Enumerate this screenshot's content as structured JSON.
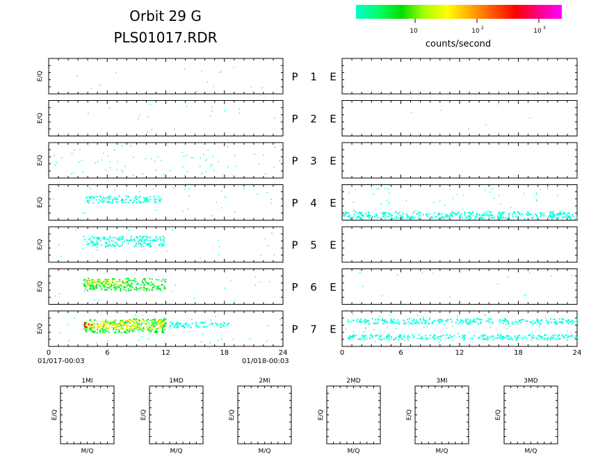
{
  "header": {
    "title_line1": "Orbit  29  G",
    "title_line2": "PLS01017.RDR"
  },
  "colorbar": {
    "label": "counts/second",
    "ticks": [
      {
        "base": "10",
        "exp": ""
      },
      {
        "base": "10",
        "exp": "2"
      },
      {
        "base": "10",
        "exp": "3"
      }
    ],
    "gradient": [
      "#00ffcc",
      "#00ff66",
      "#00dd00",
      "#aaff00",
      "#ffff00",
      "#ffaa00",
      "#ff5500",
      "#ff0000",
      "#ff0088",
      "#ff00ff"
    ]
  },
  "left_axis": {
    "ticks": [
      "0",
      "6",
      "12",
      "18",
      "24"
    ],
    "start_label": "01/017-00:03",
    "end_label": "01/018-00:03",
    "ylabel": "E/Q"
  },
  "right_axis": {
    "ticks": [
      "0",
      "6",
      "12",
      "18",
      "24"
    ]
  },
  "chart_data": {
    "type": "heatmap",
    "x_range_hours": [
      0,
      24
    ],
    "colors": {
      "low": "#00ffdd",
      "mid": "#00ee22",
      "high": "#ffee00",
      "peak": "#ff0000"
    },
    "rows": [
      {
        "p": "P",
        "num": "1",
        "e": "E",
        "left": {
          "density": 0.12,
          "bands": []
        },
        "right": {
          "density": 0,
          "bands": []
        }
      },
      {
        "p": "P",
        "num": "2",
        "e": "E",
        "left": {
          "density": 0.14,
          "bands": []
        },
        "right": {
          "density": 0.05,
          "bands": []
        }
      },
      {
        "p": "P",
        "num": "3",
        "e": "E",
        "left": {
          "density": 0.6,
          "bands": []
        },
        "right": {
          "density": 0,
          "bands": []
        }
      },
      {
        "p": "P",
        "num": "4",
        "e": "E",
        "left": {
          "density": 0.25,
          "bands": [
            {
              "x0": 3.7,
              "x1": 11.5,
              "y0": 0.3,
              "y1": 0.5,
              "level": "low"
            }
          ]
        },
        "right": {
          "density": 0.45,
          "bands": [
            {
              "x0": 0,
              "x1": 24,
              "y0": 0.75,
              "y1": 0.95,
              "level": "low"
            }
          ]
        }
      },
      {
        "p": "P",
        "num": "5",
        "e": "E",
        "left": {
          "density": 0.18,
          "bands": [
            {
              "x0": 3.5,
              "x1": 11.8,
              "y0": 0.25,
              "y1": 0.55,
              "level": "low"
            }
          ]
        },
        "right": {
          "density": 0,
          "bands": []
        }
      },
      {
        "p": "P",
        "num": "6",
        "e": "E",
        "left": {
          "density": 0.16,
          "bands": [
            {
              "x0": 3.5,
              "x1": 12.0,
              "y0": 0.25,
              "y1": 0.6,
              "level": "mid"
            },
            {
              "x0": 3.7,
              "x1": 8.0,
              "y0": 0.3,
              "y1": 0.42,
              "level": "high"
            }
          ]
        },
        "right": {
          "density": 0.12,
          "bands": []
        }
      },
      {
        "p": "P",
        "num": "7",
        "e": "E",
        "left": {
          "density": 0.3,
          "bands": [
            {
              "x0": 3.5,
              "x1": 12.0,
              "y0": 0.2,
              "y1": 0.6,
              "level": "mid"
            },
            {
              "x0": 3.7,
              "x1": 11.8,
              "y0": 0.25,
              "y1": 0.5,
              "level": "high"
            },
            {
              "x0": 3.6,
              "x1": 4.4,
              "y0": 0.3,
              "y1": 0.45,
              "level": "peak"
            },
            {
              "x0": 12.0,
              "x1": 18.5,
              "y0": 0.3,
              "y1": 0.45,
              "level": "low"
            }
          ]
        },
        "right": {
          "density": 0.55,
          "bands": [
            {
              "x0": 0.5,
              "x1": 24,
              "y0": 0.2,
              "y1": 0.35,
              "level": "low"
            },
            {
              "x0": 0.5,
              "x1": 24,
              "y0": 0.65,
              "y1": 0.8,
              "level": "low"
            }
          ]
        }
      }
    ]
  },
  "mass_panels": {
    "labels": [
      "1MI",
      "1MD",
      "2MI",
      "2MD",
      "3MI",
      "3MD"
    ],
    "xlabel": "M/Q",
    "ylabel": "E/Q"
  }
}
